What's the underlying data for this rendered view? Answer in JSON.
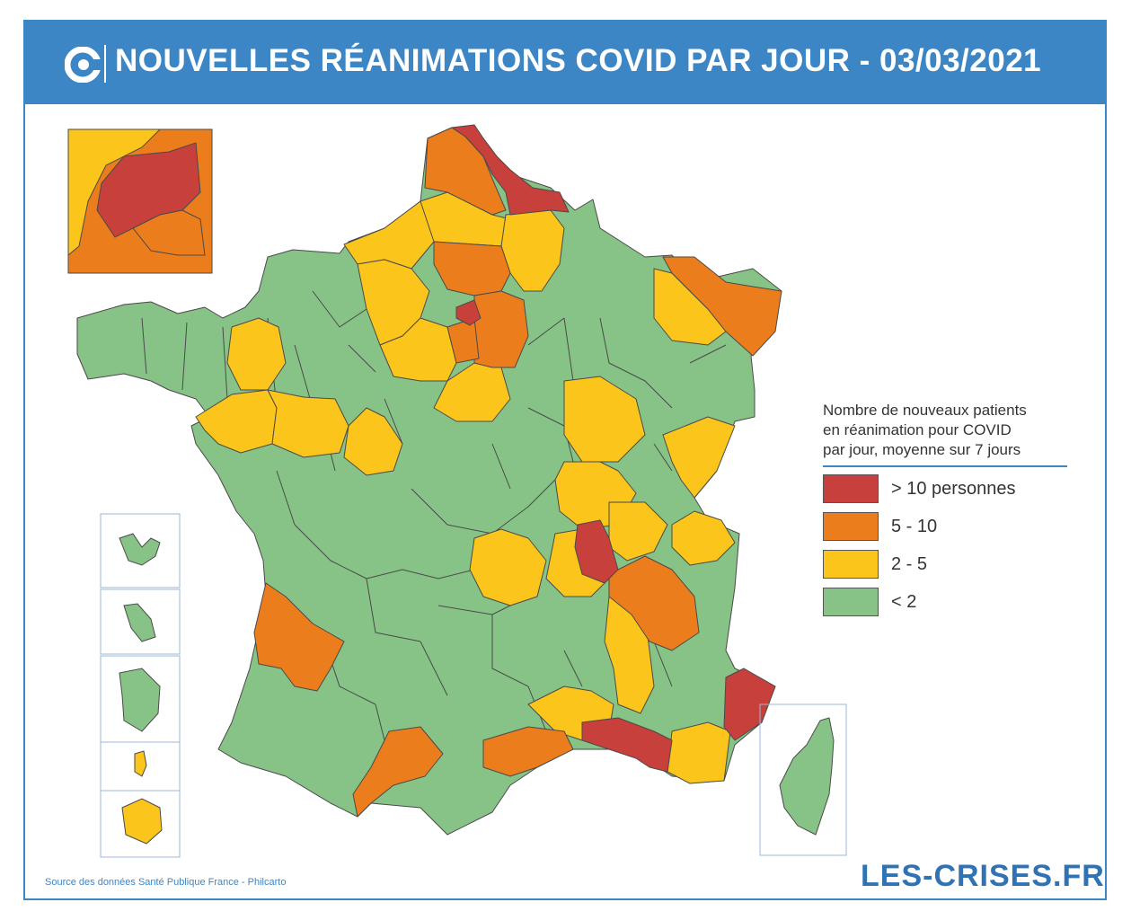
{
  "header": {
    "title": "NOUVELLES RÉANIMATIONS COVID PAR JOUR - 03/03/2021",
    "logo_icon": "les-crises-c-icon"
  },
  "legend": {
    "title_lines": [
      "Nombre de nouveaux patients",
      "en réanimation pour COVID",
      "par jour, moyenne sur 7 jours"
    ],
    "items": [
      {
        "label": "> 10 personnes",
        "color": "#c7403c"
      },
      {
        "label": "5 - 10",
        "color": "#ec7d1c"
      },
      {
        "label": "2 - 5",
        "color": "#fbc51b"
      },
      {
        "label": "< 2",
        "color": "#87c386"
      }
    ]
  },
  "source": "Source des données Santé Publique France - Philcarto",
  "brand": "LES-CRISES.FR",
  "colors": {
    "header": "#3d86c6",
    "red": "#c7403c",
    "orange": "#ec7d1c",
    "yellow": "#fbc51b",
    "green": "#87c386",
    "border": "#4a4a4a"
  }
}
